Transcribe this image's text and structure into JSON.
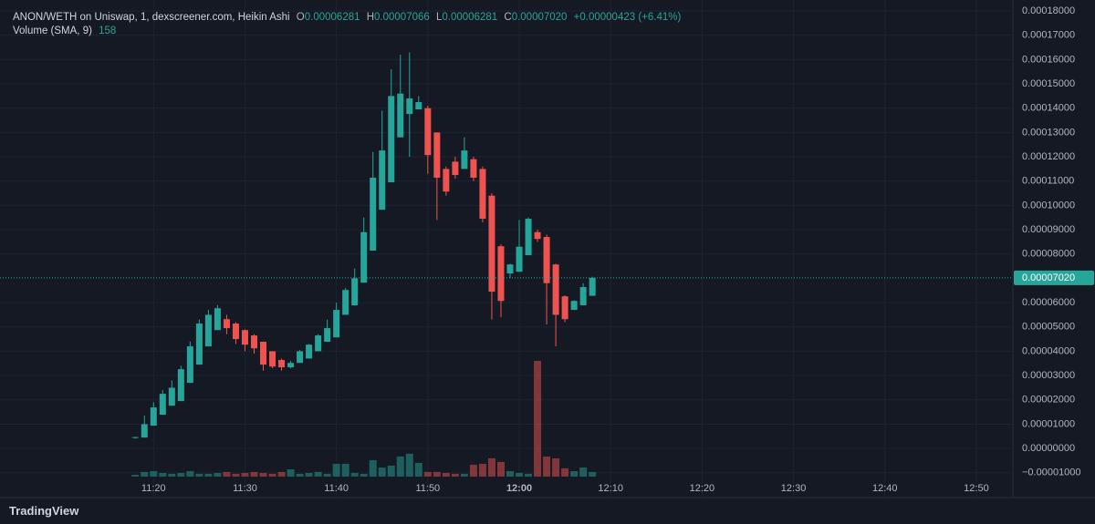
{
  "chart_data": {
    "type": "candlestick",
    "title": "ANON/WETH on Uniswap, 1, dexscreener.com, Heikin Ashi",
    "ohlc_legend": [
      {
        "key": "O",
        "value": "0.00006281"
      },
      {
        "key": "H",
        "value": "0.00007066"
      },
      {
        "key": "L",
        "value": "0.00006281"
      },
      {
        "key": "C",
        "value": "0.00007020"
      }
    ],
    "change": "+0.00000423 (+6.41%)",
    "volume_legend": {
      "name": "Volume (SMA, 9)",
      "value": "158"
    },
    "brand": "TradingView",
    "up_color": "#26a69a",
    "down_color": "#ef5350",
    "x": [
      "11:18",
      "11:19",
      "11:20",
      "11:21",
      "11:22",
      "11:23",
      "11:24",
      "11:25",
      "11:26",
      "11:27",
      "11:28",
      "11:29",
      "11:30",
      "11:31",
      "11:32",
      "11:33",
      "11:34",
      "11:35",
      "11:36",
      "11:37",
      "11:38",
      "11:39",
      "11:40",
      "11:41",
      "11:42",
      "11:43",
      "11:44",
      "11:45",
      "11:46",
      "11:47",
      "11:48",
      "11:49",
      "11:50",
      "11:51",
      "11:52",
      "11:53",
      "11:54",
      "11:55",
      "11:56",
      "11:57",
      "11:58",
      "11:59",
      "12:00",
      "12:01",
      "12:02",
      "12:03",
      "12:04",
      "12:05",
      "12:06",
      "12:07",
      "12:08"
    ],
    "open": [
      4.5e-06,
      4.5e-06,
      9.4e-06,
      1.39e-05,
      1.76e-05,
      1.95e-05,
      2.7e-05,
      3.45e-05,
      4.2e-05,
      4.87e-05,
      5.32e-05,
      5.14e-05,
      4.87e-05,
      4.65e-05,
      4.39e-05,
      4e-05,
      3.64e-05,
      3.34e-05,
      3.52e-05,
      3.7e-05,
      4e-05,
      4.39e-05,
      4.57e-05,
      5.5e-05,
      5.89e-05,
      6.82e-05,
      8.14e-05,
      9.82e-05,
      0.0001095,
      0.000128,
      0.0001376,
      0.0001395,
      0.00014,
      0.00013,
      0.000115,
      0.000118,
      0.000115,
      0.000119,
      0.000115,
      0.000104,
      8.32e-05,
      7.2e-05,
      7.27e-05,
      7.95e-05,
      8.9e-05,
      8.7e-05,
      7.57e-05,
      6.26e-05,
      5.7e-05,
      5.89e-05,
      6.281e-05
    ],
    "high": [
      4.8e-06,
      1.35e-05,
      1.9e-05,
      2.4e-05,
      2.8e-05,
      3.4e-05,
      4.4e-05,
      5.3e-05,
      5.7e-05,
      5.9e-05,
      5.5e-05,
      5.2e-05,
      4.9e-05,
      4.7e-05,
      4.4e-05,
      4e-05,
      3.7e-05,
      3.6e-05,
      4.05e-05,
      4.3e-05,
      4.7e-05,
      5.3e-05,
      6e-05,
      6.6e-05,
      7.4e-05,
      9.5e-05,
      0.000122,
      0.000139,
      0.000156,
      0.000162,
      0.000163,
      0.000145,
      0.000141,
      0.00013,
      0.000116,
      0.00012,
      0.000128,
      0.00012,
      0.000116,
      0.000105,
      8.4e-05,
      7.6e-05,
      9.4e-05,
      9.5e-05,
      9e-05,
      8.8e-05,
      7.6e-05,
      6.3e-05,
      6.1e-05,
      6.8e-05,
      7.066e-05
    ],
    "low": [
      4e-06,
      4.5e-06,
      9.4e-06,
      1.39e-05,
      1.76e-05,
      1.95e-05,
      2.7e-05,
      3.45e-05,
      4.2e-05,
      4.87e-05,
      4.7e-05,
      4.3e-05,
      4e-05,
      3.9e-05,
      3.2e-05,
      3.3e-05,
      3.2e-05,
      3.3e-05,
      3.52e-05,
      3.7e-05,
      4e-05,
      4.39e-05,
      4.57e-05,
      5.5e-05,
      5.89e-05,
      6.82e-05,
      8.14e-05,
      9.82e-05,
      0.0001095,
      0.000128,
      0.00012,
      0.0001395,
      0.000113,
      9.4e-05,
      0.000104,
      0.000111,
      0.000115,
      0.00011,
      9.3e-05,
      5.3e-05,
      5.4e-05,
      7e-05,
      7.27e-05,
      7.95e-05,
      8.5e-05,
      5.1e-05,
      4.2e-05,
      5.2e-05,
      5.7e-05,
      5.89e-05,
      6.281e-05
    ],
    "close": [
      4.7e-06,
      1e-05,
      1.69e-05,
      2.25e-05,
      2.5e-05,
      3.26e-05,
      4.2e-05,
      5.14e-05,
      5.5e-05,
      5.77e-05,
      4.95e-05,
      4.5e-05,
      4.27e-05,
      4.12e-05,
      3.45e-05,
      3.37e-05,
      3.34e-05,
      3.52e-05,
      4e-05,
      4.27e-05,
      4.65e-05,
      4.95e-05,
      5.7e-05,
      6.52e-05,
      7e-05,
      8.9e-05,
      0.0001114,
      0.0001226,
      0.000145,
      0.000146,
      0.000144,
      0.0001425,
      0.0001207,
      0.0001114,
      0.0001057,
      0.0001125,
      0.0001226,
      0.0001114,
      9.45e-05,
      6.45e-05,
      6.07e-05,
      7.57e-05,
      8.3e-05,
      9.45e-05,
      8.62e-05,
      6.8e-05,
      5.5e-05,
      5.32e-05,
      6.07e-05,
      6.64e-05,
      7.02e-05
    ],
    "volume": [
      15,
      38,
      45,
      30,
      23,
      30,
      45,
      23,
      23,
      30,
      38,
      23,
      30,
      38,
      30,
      23,
      38,
      60,
      23,
      30,
      38,
      23,
      105,
      105,
      30,
      23,
      135,
      75,
      90,
      165,
      188,
      113,
      38,
      38,
      30,
      23,
      23,
      98,
      105,
      150,
      120,
      45,
      30,
      23,
      950,
      165,
      150,
      68,
      45,
      75,
      38
    ],
    "xlim": [
      "11:04",
      "12:54"
    ],
    "xticks": [
      "11:20",
      "11:30",
      "11:40",
      "11:50",
      "12:00",
      "12:10",
      "12:20",
      "12:30",
      "12:40",
      "12:50"
    ],
    "ylim": [
      -1.27e-05,
      0.0001845
    ],
    "yticks": [
      {
        "value": 0.00018,
        "label": "0.00018000"
      },
      {
        "value": 0.00017,
        "label": "0.00017000"
      },
      {
        "value": 0.00016,
        "label": "0.00016000"
      },
      {
        "value": 0.00015,
        "label": "0.00015000"
      },
      {
        "value": 0.00014,
        "label": "0.00014000"
      },
      {
        "value": 0.00013,
        "label": "0.00013000"
      },
      {
        "value": 0.00012,
        "label": "0.00012000"
      },
      {
        "value": 0.00011,
        "label": "0.00011000"
      },
      {
        "value": 0.0001,
        "label": "0.00010000"
      },
      {
        "value": 9e-05,
        "label": "0.00009000"
      },
      {
        "value": 8e-05,
        "label": "0.00008000"
      },
      {
        "value": 6e-05,
        "label": "0.00006000"
      },
      {
        "value": 5e-05,
        "label": "0.00005000"
      },
      {
        "value": 4e-05,
        "label": "0.00004000"
      },
      {
        "value": 3e-05,
        "label": "0.00003000"
      },
      {
        "value": 2e-05,
        "label": "0.00002000"
      },
      {
        "value": 1e-05,
        "label": "0.00001000"
      },
      {
        "value": 0,
        "label": "0.00000000"
      },
      {
        "value": -1e-05,
        "label": "−0.00001000"
      }
    ],
    "price_line": {
      "value": 7.02e-05,
      "label": "0.00007020"
    },
    "grid": true
  }
}
